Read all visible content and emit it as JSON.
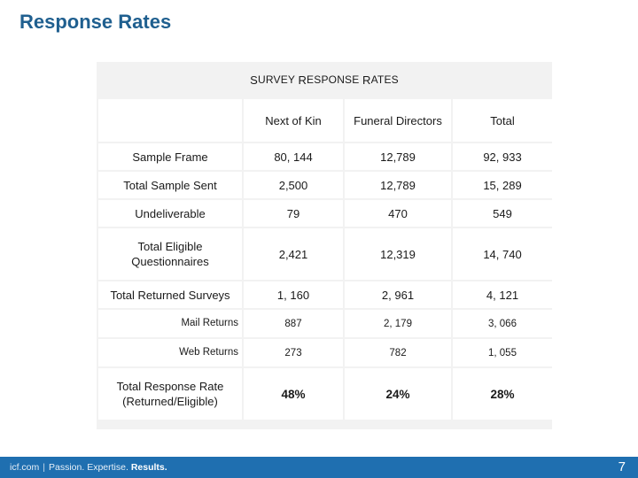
{
  "slide": {
    "title": "Response Rates",
    "page_number": "7"
  },
  "table": {
    "caption_first": "S",
    "caption_w1_rest": "URVEY ",
    "caption_w2_first": "R",
    "caption_w2_rest": "ESPONSE ",
    "caption_w3_first": "R",
    "caption_w3_rest": "ATES",
    "columns": [
      "Next of Kin",
      "Funeral Directors",
      "Total"
    ],
    "rows": [
      {
        "label": "Sample Frame",
        "values": [
          "80, 144",
          "12,789",
          "92, 933"
        ]
      },
      {
        "label": "Total Sample Sent",
        "values": [
          "2,500",
          "12,789",
          "15, 289"
        ]
      },
      {
        "label": "Undeliverable",
        "values": [
          "79",
          "470",
          "549"
        ]
      },
      {
        "label_line1": "Total Eligible",
        "label_line2": "Questionnaires",
        "values": [
          "2,421",
          "12,319",
          "14, 740"
        ]
      },
      {
        "label": "Total Returned Surveys",
        "values": [
          "1, 160",
          "2, 961",
          "4, 121"
        ]
      },
      {
        "label": "Mail Returns",
        "values": [
          "887",
          "2, 179",
          "3, 066"
        ]
      },
      {
        "label": "Web Returns",
        "values": [
          "273",
          "782",
          "1, 055"
        ]
      },
      {
        "label_line1": "Total Response Rate",
        "label_line2": "(Returned/Eligible)",
        "values": [
          "48%",
          "24%",
          "28%"
        ]
      }
    ]
  },
  "footer": {
    "site": "icf.com",
    "separator": "|",
    "tagline_plain": "Passion. Expertise.",
    "tagline_bold": "Results."
  },
  "colors": {
    "title": "#1f5f8f",
    "footer_bar": "#1f6fb0",
    "table_grid": "#f2f2f2"
  }
}
